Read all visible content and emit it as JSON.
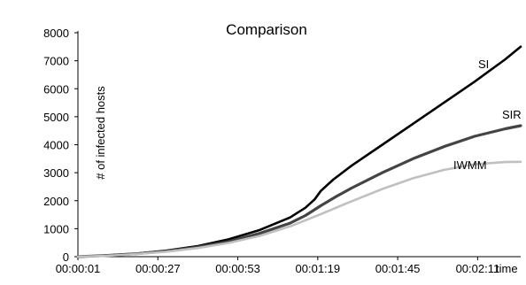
{
  "chart_data": {
    "type": "line",
    "title": "Comparison",
    "xlabel": "time",
    "ylabel": "# of infected hosts",
    "ylim": [
      0,
      8000
    ],
    "yticks": [
      0,
      1000,
      2000,
      3000,
      4000,
      5000,
      6000,
      7000,
      8000
    ],
    "x_tick_labels": [
      "00:00:01",
      "00:00:27",
      "00:00:53",
      "00:01:19",
      "00:01:45",
      "00:02:11"
    ],
    "x_tick_seconds": [
      1,
      27,
      53,
      79,
      105,
      131
    ],
    "xlim_seconds": [
      1,
      145
    ],
    "grid": false,
    "legend": "labels on lines",
    "series": [
      {
        "name": "SI",
        "color": "#000000",
        "x_seconds": [
          1,
          10,
          20,
          30,
          40,
          50,
          60,
          70,
          75,
          78,
          80,
          84,
          90,
          100,
          110,
          120,
          130,
          140,
          145
        ],
        "values": [
          0,
          40,
          110,
          220,
          380,
          620,
          950,
          1400,
          1750,
          2050,
          2350,
          2750,
          3250,
          4000,
          4750,
          5500,
          6250,
          7050,
          7500
        ]
      },
      {
        "name": "SIR",
        "color": "#444444",
        "x_seconds": [
          1,
          10,
          20,
          30,
          40,
          50,
          60,
          70,
          75,
          80,
          85,
          90,
          100,
          110,
          120,
          130,
          140,
          145
        ],
        "values": [
          0,
          40,
          105,
          200,
          340,
          540,
          830,
          1200,
          1470,
          1820,
          2150,
          2450,
          3000,
          3500,
          3930,
          4300,
          4570,
          4680
        ]
      },
      {
        "name": "IWMM",
        "color": "#c0c0c0",
        "x_seconds": [
          1,
          10,
          20,
          30,
          40,
          50,
          60,
          70,
          80,
          90,
          100,
          110,
          120,
          130,
          140,
          145
        ],
        "values": [
          0,
          30,
          95,
          180,
          310,
          490,
          740,
          1080,
          1520,
          1980,
          2420,
          2800,
          3100,
          3300,
          3380,
          3390
        ]
      }
    ]
  }
}
